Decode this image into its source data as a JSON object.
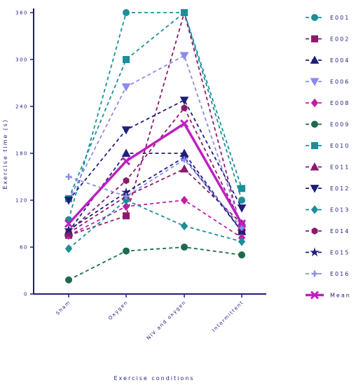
{
  "chart_data": {
    "type": "line",
    "categories": [
      "Sham",
      "Oxygen",
      "NIV and oxygen",
      "Intermittent"
    ],
    "xlabel": "Exercise conditions",
    "ylabel": "Exercise time (s)",
    "ylim": [
      0,
      360
    ],
    "yticks": [
      "0",
      "60",
      "120",
      "180",
      "240",
      "300",
      "360"
    ],
    "grid": false,
    "legend_position": "right",
    "series": [
      {
        "name": "E001",
        "color": "#1a8f9a",
        "marker": "circle",
        "dash": true,
        "values": [
          95,
          360,
          360,
          120
        ]
      },
      {
        "name": "E002",
        "color": "#8b1a6e",
        "marker": "square",
        "dash": true,
        "values": [
          75,
          100,
          360,
          80
        ]
      },
      {
        "name": "E004",
        "color": "#1f1f7a",
        "marker": "triangle-up",
        "dash": true,
        "values": [
          80,
          180,
          180,
          80
        ]
      },
      {
        "name": "E006",
        "color": "#8a8af0",
        "marker": "triangle-down",
        "dash": true,
        "values": [
          120,
          265,
          305,
          85
        ]
      },
      {
        "name": "E008",
        "color": "#c01fa8",
        "marker": "diamond",
        "dash": true,
        "values": [
          75,
          112,
          120,
          72
        ]
      },
      {
        "name": "E009",
        "color": "#1d6b4a",
        "marker": "circle",
        "dash": true,
        "values": [
          18,
          55,
          60,
          50
        ]
      },
      {
        "name": "E010",
        "color": "#1a8f9a",
        "marker": "square",
        "dash": true,
        "values": [
          122,
          300,
          360,
          135
        ]
      },
      {
        "name": "E011",
        "color": "#8b1a6e",
        "marker": "triangle-up",
        "dash": true,
        "values": [
          78,
          125,
          160,
          90
        ]
      },
      {
        "name": "E012",
        "color": "#1f1f7a",
        "marker": "triangle-down",
        "dash": true,
        "values": [
          120,
          210,
          248,
          110
        ]
      },
      {
        "name": "E013",
        "color": "#1a8f9a",
        "marker": "diamond",
        "dash": true,
        "values": [
          58,
          120,
          87,
          67
        ]
      },
      {
        "name": "E014",
        "color": "#8b1a6e",
        "marker": "hexagon",
        "dash": true,
        "values": [
          80,
          145,
          238,
          90
        ]
      },
      {
        "name": "E015",
        "color": "#1f1f7a",
        "marker": "star",
        "dash": true,
        "values": [
          82,
          130,
          175,
          80
        ]
      },
      {
        "name": "E016",
        "color": "#8a8af0",
        "marker": "plus",
        "dash": true,
        "values": [
          150,
          125,
          172,
          85
        ]
      },
      {
        "name": "Mean",
        "color": "#c01fc0",
        "marker": "x",
        "dash": false,
        "bold": true,
        "values": [
          90,
          170,
          218,
          90
        ]
      }
    ]
  }
}
